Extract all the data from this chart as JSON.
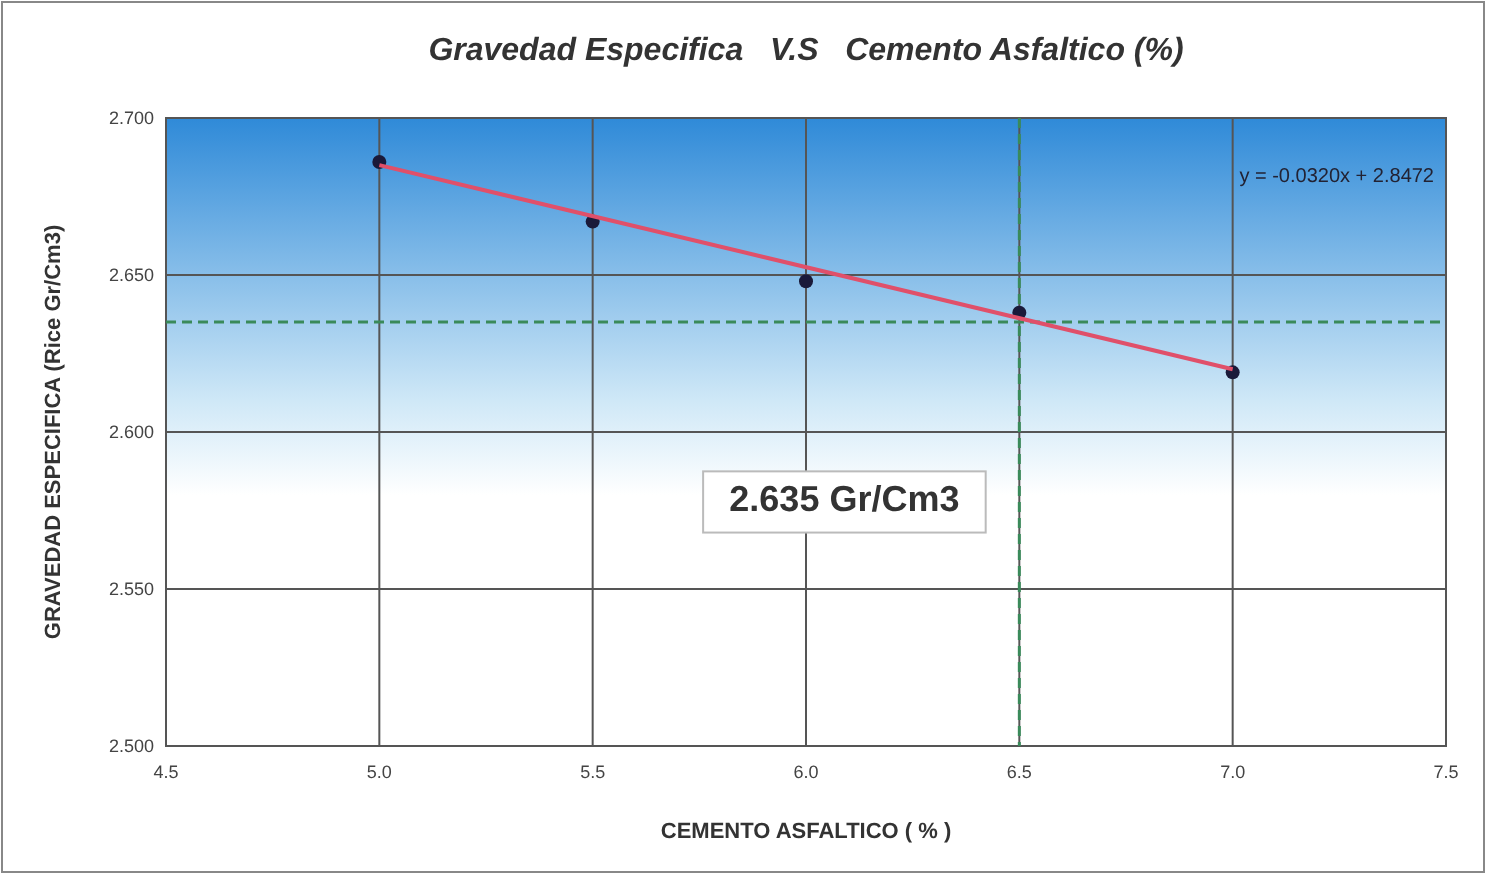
{
  "chart_data": {
    "type": "scatter",
    "title": "Gravedad Especifica   V.S   Cemento Asfaltico (%)",
    "xlabel": "CEMENTO ASFALTICO ( % )",
    "ylabel": "GRAVEDAD ESPECIFICA (Rice Gr/Cm3)",
    "x": [
      5.0,
      5.5,
      6.0,
      6.5,
      7.0
    ],
    "series": [
      {
        "color": "#1a1a3a",
        "values": [
          2.686,
          2.667,
          2.648,
          2.638,
          2.619
        ],
        "marker": "circle"
      },
      {
        "type": "line",
        "color": "#e0506a",
        "x": [
          5.0,
          7.0
        ],
        "values": [
          2.685,
          2.62
        ],
        "marker": "none"
      }
    ],
    "xlim": [
      4.5,
      7.5
    ],
    "xticks": [
      {
        "value": 4.5,
        "label": "4.5"
      },
      {
        "value": 5,
        "label": "5.0"
      },
      {
        "value": 5.5,
        "label": "5.5"
      },
      {
        "value": 6,
        "label": "6.0"
      },
      {
        "value": 6.5,
        "label": "6.5"
      },
      {
        "value": 7,
        "label": "7.0"
      },
      {
        "value": 7.5,
        "label": "7.5"
      }
    ],
    "ylim": [
      2.5,
      2.7
    ],
    "yticks": [
      {
        "value": 2.5,
        "label": "2.500"
      },
      {
        "value": 2.55,
        "label": "2.550"
      },
      {
        "value": 2.6,
        "label": "2.600"
      },
      {
        "value": 2.65,
        "label": "2.650"
      },
      {
        "value": 2.7,
        "label": "2.700"
      }
    ],
    "grid": true,
    "ref_lines": [
      {
        "axis": "y",
        "value": 2.635,
        "color": "#3a8a5a",
        "line_style": "dashed"
      },
      {
        "axis": "x",
        "value": 6.5,
        "color": "#3a8a5a",
        "line_style": "dashed"
      }
    ],
    "annotations": [
      "y = -0.0320x + 2.8472",
      "2.635 Gr/Cm3"
    ]
  }
}
